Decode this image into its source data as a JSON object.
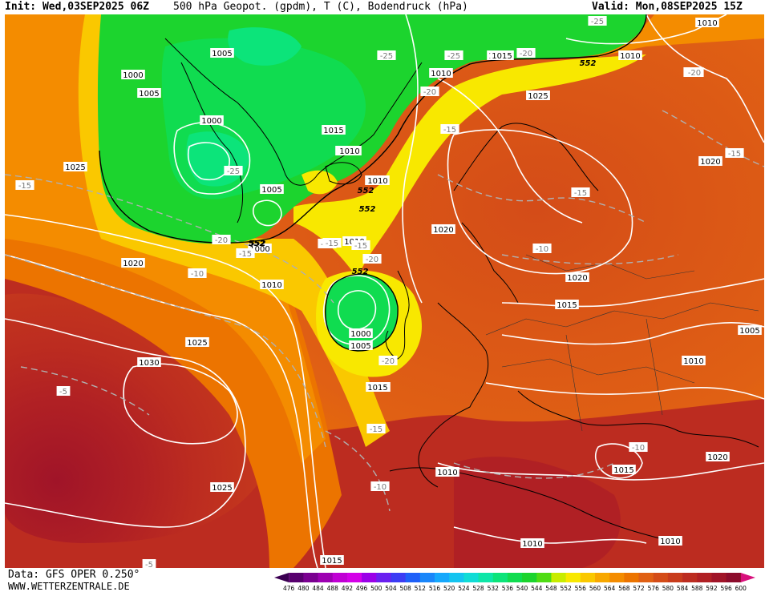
{
  "header": {
    "init": "Init: Wed,03SEP2025 06Z",
    "title": "500 hPa Geopot. (gpdm), T (C), Bodendruck (hPa)",
    "valid": "Valid: Mon,08SEP2025 15Z"
  },
  "footer": {
    "data_source": "Data: GFS OPER 0.250°",
    "website": "WWW.WETTERZENTRALE.DE"
  },
  "legend": {
    "values": [
      "476",
      "480",
      "484",
      "488",
      "492",
      "496",
      "500",
      "504",
      "508",
      "512",
      "516",
      "520",
      "524",
      "528",
      "532",
      "536",
      "540",
      "544",
      "548",
      "552",
      "556",
      "560",
      "564",
      "568",
      "572",
      "576",
      "580",
      "584",
      "588",
      "592",
      "596",
      "600"
    ],
    "colors": [
      "#3b0052",
      "#58006e",
      "#7a0090",
      "#9d00b2",
      "#c000d4",
      "#d400e8",
      "#9a00e8",
      "#6a20f0",
      "#3c3cf4",
      "#1f60f8",
      "#1a86fa",
      "#16a8fc",
      "#14c4f0",
      "#10dcd6",
      "#0ee6a8",
      "#0ce47a",
      "#10dc50",
      "#1cd42e",
      "#50dc14",
      "#c8ec00",
      "#f8e800",
      "#fac800",
      "#f8a800",
      "#f48c00",
      "#ec7400",
      "#e06014",
      "#d44c18",
      "#c83c1c",
      "#bc2c20",
      "#b02024",
      "#a01428",
      "#8c0c2c",
      "#d8107c"
    ]
  },
  "contour_labels": {
    "pressure": [
      "1010",
      "1005",
      "1000",
      "1005",
      "1020",
      "1010",
      "1025",
      "1020",
      "1000",
      "1005",
      "1015",
      "1010",
      "1025",
      "1005",
      "1000",
      "1010",
      "1020",
      "1010",
      "1025",
      "1020",
      "1030",
      "1020",
      "1000",
      "1005",
      "1015",
      "1010",
      "1005",
      "1025",
      "1015",
      "1015",
      "1010",
      "1020",
      "1015",
      "1010",
      "1010",
      "1015",
      "1010",
      "1010",
      "1010",
      "1015",
      "1025"
    ],
    "temperature": [
      "-25",
      "-25",
      "-25",
      "-20",
      "-20",
      "-25",
      "-15",
      "-10",
      "-20",
      "-15",
      "-15",
      "-20",
      "-20",
      "-15",
      "-15",
      "-15",
      "-10",
      "-20",
      "-15",
      "-10",
      "-5",
      "-5",
      "-15",
      "-15",
      "-10",
      "-20"
    ],
    "geopotential": [
      "552",
      "552",
      "552",
      "552",
      "552",
      "552"
    ]
  },
  "map_colors": {
    "green": "#10dc50",
    "yellow": "#f8e800",
    "orange": "#f8a800",
    "red": "#bc2c20"
  }
}
